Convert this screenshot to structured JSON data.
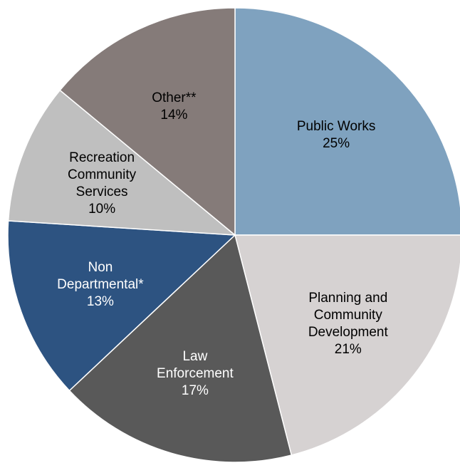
{
  "chart_data": {
    "type": "pie",
    "title": "",
    "start_angle_deg": 0,
    "direction": "clockwise",
    "slices": [
      {
        "name": "Public Works",
        "label_lines": [
          "Public Works"
        ],
        "value": 25,
        "value_label": "25%",
        "color": "#7fa2bf",
        "text_color": "#000000"
      },
      {
        "name": "Planning and Community Development",
        "label_lines": [
          "Planning and",
          "Community",
          "Development"
        ],
        "value": 21,
        "value_label": "21%",
        "color": "#d6d2d2",
        "text_color": "#000000"
      },
      {
        "name": "Law Enforcement",
        "label_lines": [
          "Law",
          "Enforcement"
        ],
        "value": 17,
        "value_label": "17%",
        "color": "#595959",
        "text_color": "#ffffff"
      },
      {
        "name": "Non Departmental*",
        "label_lines": [
          "Non",
          "Departmental*"
        ],
        "value": 13,
        "value_label": "13%",
        "color": "#2d5381",
        "text_color": "#ffffff"
      },
      {
        "name": "Recreation Community Services",
        "label_lines": [
          "Recreation",
          "Community",
          "Services"
        ],
        "value": 10,
        "value_label": "10%",
        "color": "#bfbfbf",
        "text_color": "#000000"
      },
      {
        "name": "Other**",
        "label_lines": [
          "Other**"
        ],
        "value": 14,
        "value_label": "14%",
        "color": "#857b79",
        "text_color": "#000000"
      }
    ]
  }
}
